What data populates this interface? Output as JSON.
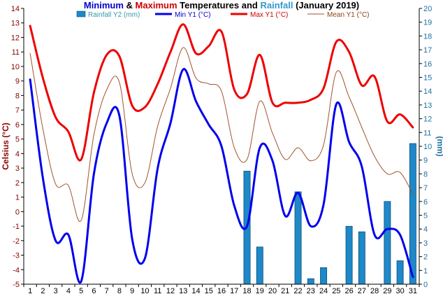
{
  "chart_data": {
    "type": "line",
    "title_parts": [
      {
        "text": "Minimum",
        "color": "#0000cc"
      },
      {
        "text": " & ",
        "color": "#000000"
      },
      {
        "text": "Maximum",
        "color": "#cc0000"
      },
      {
        "text": " Temperatures and ",
        "color": "#000000"
      },
      {
        "text": "Rainfall",
        "color": "#3399cc"
      },
      {
        "text": " (January 2019)",
        "color": "#000000"
      }
    ],
    "ylabel_left": "Celsius (°C)",
    "ylabel_right": "(mm)",
    "ylim_left": [
      -5,
      14
    ],
    "ylim_right": [
      0,
      20
    ],
    "categories": [
      "1",
      "2",
      "3",
      "4",
      "5",
      "6",
      "7",
      "8",
      "9",
      "10",
      "11",
      "12",
      "13",
      "14",
      "15",
      "16",
      "17",
      "18",
      "19",
      "20",
      "21",
      "22",
      "23",
      "24",
      "25",
      "26",
      "27",
      "28",
      "29",
      "30",
      "31"
    ],
    "legend": [
      {
        "label": "Rainfall Y2 (mm)",
        "kind": "bar",
        "color": "#1e88c8",
        "text_color": "#3399aa"
      },
      {
        "label": "Min Y1 (°C)",
        "kind": "line",
        "color": "#0000ee",
        "text_color": "#0000cc"
      },
      {
        "label": "Max Y1 (°C)",
        "kind": "line",
        "color": "#ee0000",
        "text_color": "#cc0000"
      },
      {
        "label": "Mean Y1 (°C)",
        "kind": "line",
        "color": "#a0522d",
        "text_color": "#8b4513"
      }
    ],
    "series": [
      {
        "name": "Max Y1 (°C)",
        "axis": "left",
        "values": [
          12.8,
          9.2,
          6.5,
          5.5,
          3.6,
          8.2,
          10.8,
          10.7,
          7.3,
          7.2,
          8.8,
          11.0,
          12.9,
          10.9,
          11.4,
          12.4,
          8.4,
          8.1,
          10.8,
          7.5,
          7.5,
          7.5,
          7.7,
          8.5,
          11.7,
          11.0,
          8.7,
          9.3,
          6.2,
          6.7,
          5.8
        ]
      },
      {
        "name": "Min Y1 (°C)",
        "axis": "left",
        "values": [
          9.1,
          2.3,
          -2.0,
          -1.6,
          -4.8,
          2.6,
          6.1,
          6.6,
          -1.9,
          -3.2,
          3.0,
          6.1,
          9.8,
          7.6,
          6.0,
          4.5,
          0.4,
          -1.0,
          4.4,
          3.5,
          -0.3,
          1.3,
          -1.0,
          0.5,
          7.4,
          4.8,
          3.1,
          -1.6,
          -1.2,
          -1.6,
          -4.5
        ]
      },
      {
        "name": "Mean Y1 (°C)",
        "axis": "left",
        "values": [
          10.9,
          5.7,
          1.9,
          1.8,
          -0.6,
          5.3,
          8.4,
          8.9,
          2.6,
          2.0,
          5.9,
          8.5,
          11.3,
          9.2,
          8.8,
          8.3,
          4.4,
          3.6,
          7.6,
          5.4,
          3.6,
          4.4,
          3.5,
          4.6,
          9.6,
          7.9,
          5.8,
          3.8,
          2.6,
          2.7,
          1.2
        ]
      },
      {
        "name": "Rainfall Y2 (mm)",
        "axis": "right",
        "values": [
          0,
          0,
          0,
          0,
          0,
          0,
          0,
          0,
          0,
          0,
          0,
          0,
          0,
          0,
          0,
          0,
          0,
          8.2,
          2.7,
          0,
          0,
          6.7,
          0.4,
          1.2,
          0,
          4.2,
          3.8,
          0,
          6.0,
          1.7,
          10.2
        ]
      }
    ],
    "grid": false
  }
}
